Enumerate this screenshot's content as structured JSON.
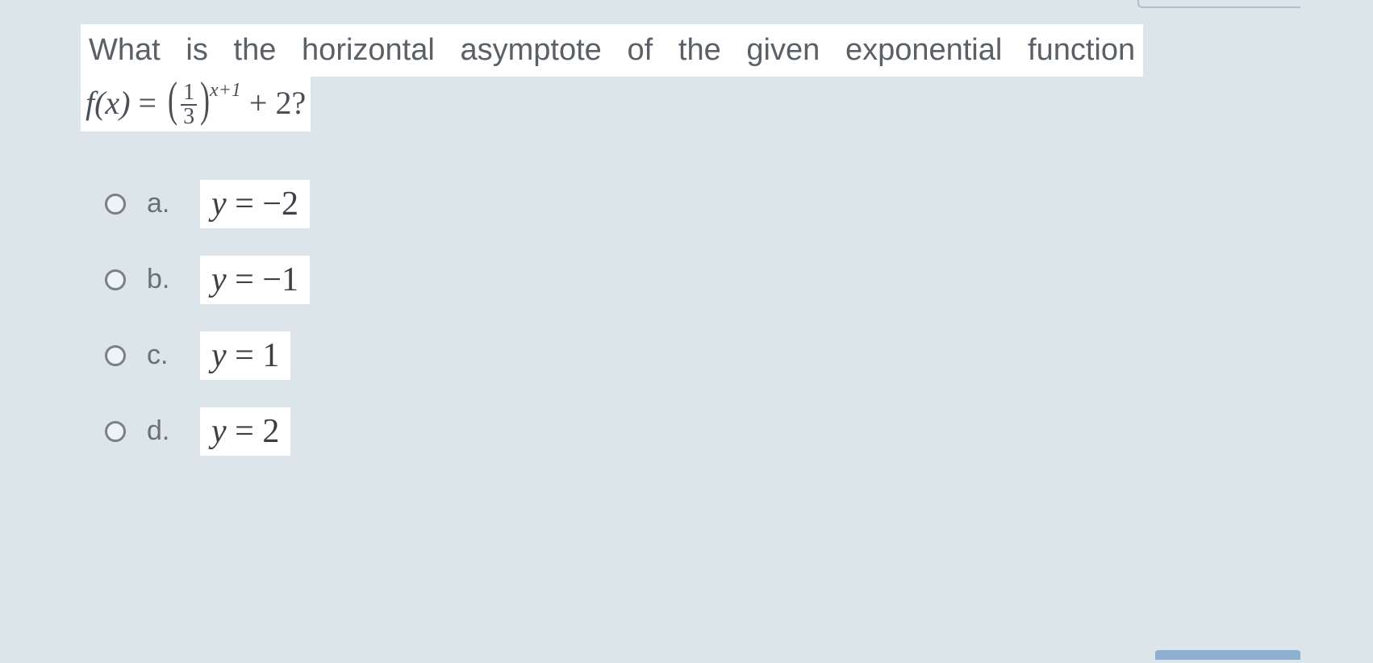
{
  "colors": {
    "page_background": "#dce5ea",
    "highlight_background": "#ffffff",
    "text_primary": "#4a5055",
    "text_secondary": "#5a6065",
    "radio_border": "#7a8085",
    "bottom_accent": "#8db0d0"
  },
  "typography": {
    "question_fontsize": 38,
    "option_letter_fontsize": 34,
    "option_formula_fontsize": 42,
    "formula_fontsize": 40,
    "font_family_sans": "Arial",
    "font_family_math": "Times New Roman"
  },
  "question": {
    "prompt_words": [
      "What",
      "is",
      "the",
      "horizontal",
      "asymptote",
      "of",
      "the",
      "given",
      "exponential",
      "function"
    ],
    "formula": {
      "lhs": "f(x)",
      "equals": "=",
      "base_numerator": "1",
      "base_denominator": "3",
      "exponent": "x+1",
      "plus": "+ 2?",
      "lparen": "(",
      "rparen": ")"
    }
  },
  "options": [
    {
      "letter": "a.",
      "y": "y",
      "eq": " = ",
      "rhs": "−2",
      "selected": false
    },
    {
      "letter": "b.",
      "y": "y",
      "eq": " = ",
      "rhs": "−1",
      "selected": false
    },
    {
      "letter": "c.",
      "y": "y",
      "eq": " = ",
      "rhs": "1",
      "selected": false
    },
    {
      "letter": "d.",
      "y": "y",
      "eq": " = ",
      "rhs": "2",
      "selected": false
    }
  ]
}
